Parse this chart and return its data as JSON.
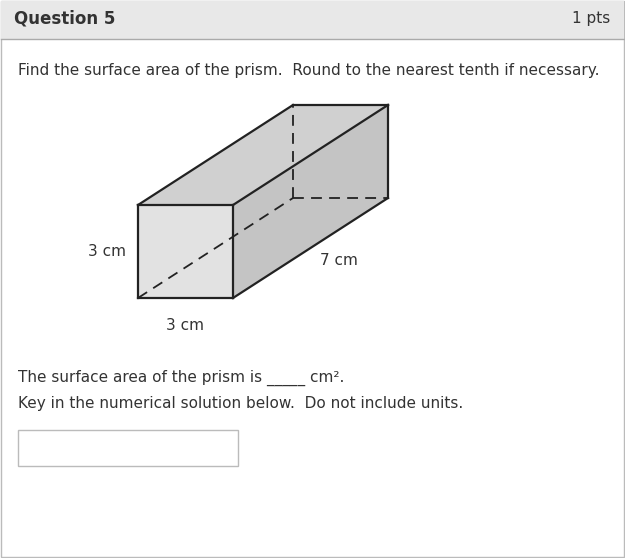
{
  "title": "Question 5",
  "pts": "1 pts",
  "instruction": "Find the surface area of the prism.  Round to the nearest tenth if necessary.",
  "label_3cm_left": "3 cm",
  "label_3cm_bottom": "3 cm",
  "label_7cm": "7 cm",
  "answer_text": "The surface area of the prism is _____ cm².",
  "key_text": "Key in the numerical solution below.  Do not include units.",
  "white": "#ffffff",
  "header_bg": "#e8e8e8",
  "border_color": "#bbbbbb",
  "prism_front_color": "#e2e2e2",
  "prism_top_color": "#d0d0d0",
  "prism_right_color": "#c4c4c4",
  "prism_line_color": "#222222",
  "text_color": "#333333",
  "header_line_color": "#aaaaaa"
}
